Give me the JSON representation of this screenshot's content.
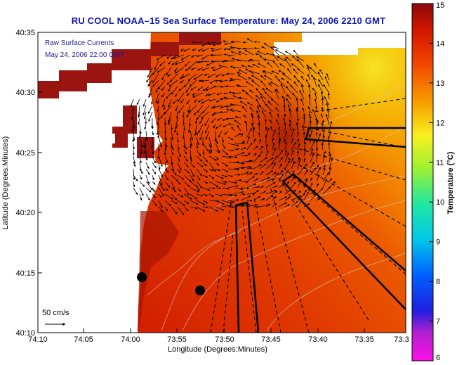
{
  "title": "RU COOL  NOAA–15  Sea Surface Temperature:  May 24, 2006 2210 GMT",
  "overlay": {
    "line1": "Raw Surface Currents",
    "line2": "May 24, 2006 22:00 GMT"
  },
  "scale_label": "50 cm/s",
  "x_axis": {
    "label": "Longitude (Degrees:Minutes)",
    "ticks": [
      "74:10",
      "74:05",
      "74:00",
      "73:55",
      "73:50",
      "73:45",
      "73:40",
      "73:35",
      "73:3"
    ]
  },
  "y_axis": {
    "label": "Latitude (Degrees:Minutes)",
    "ticks": [
      "40:35",
      "40:30",
      "40:25",
      "40:20",
      "40:15",
      "40:10"
    ]
  },
  "colorbar": {
    "label": "Temperature (°C)",
    "ticks": [
      "15",
      "14",
      "13",
      "12",
      "11",
      "10",
      "9",
      "8",
      "7",
      "6"
    ],
    "min": 6,
    "max": 15
  },
  "colors": {
    "title": "#0a14b4",
    "overlay_text": "#1b1b9a",
    "land": "#ffffff"
  }
}
